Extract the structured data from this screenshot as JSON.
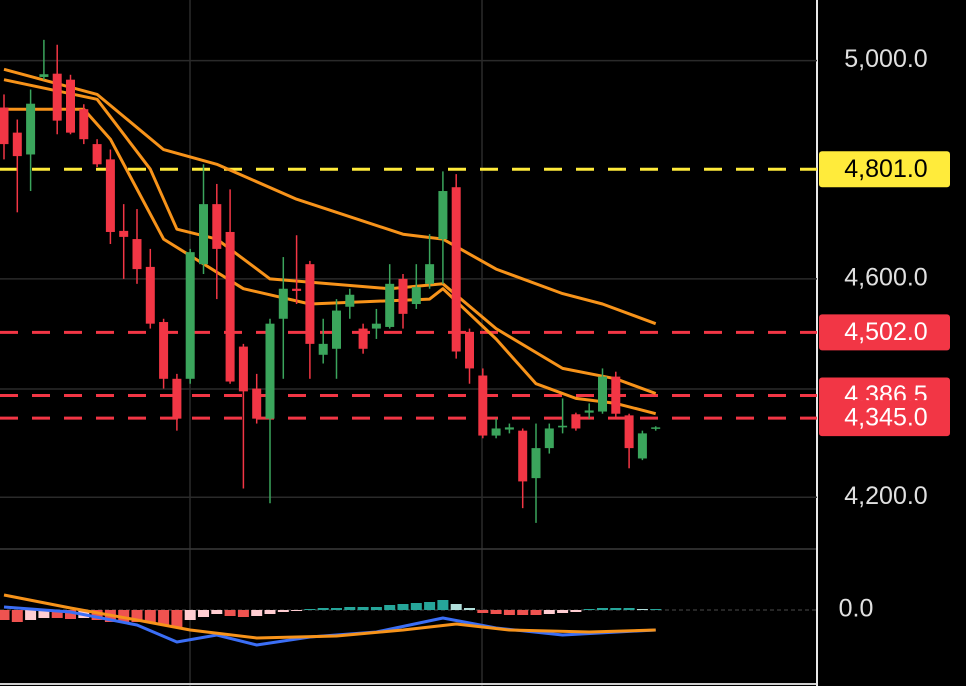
{
  "chart_data": [
    {
      "type": "candlestick",
      "ylim": [
        4107,
        5111
      ],
      "yticks": [
        {
          "value": 5000,
          "label": "5,000.0"
        },
        {
          "value": 4600,
          "label": "4,600.0"
        },
        {
          "value": 4200,
          "label": "4,200.0"
        }
      ],
      "grid": true,
      "up_color": "#3ba55c",
      "down_color": "#f23645",
      "open": [
        4914,
        4868,
        4828,
        4970,
        4976,
        4965,
        4911,
        4847,
        4819,
        4688,
        4673,
        4622,
        4521,
        4417,
        4417,
        4627,
        4737,
        4686,
        4476,
        4399,
        4344,
        4527,
        4582,
        4627,
        4461,
        4472,
        4549,
        4509,
        4509,
        4512,
        4600,
        4554,
        4591,
        4673,
        4768,
        4503,
        4423,
        4313,
        4324,
        4322,
        4235,
        4290,
        4328,
        4352,
        4355,
        4357,
        4421,
        4350,
        4271,
        4326
      ],
      "high": [
        4938,
        4892,
        4947,
        5038,
        5029,
        4974,
        4920,
        4856,
        4837,
        4737,
        4728,
        4655,
        4527,
        4426,
        4655,
        4810,
        4774,
        4764,
        4481,
        4426,
        4527,
        4640,
        4680,
        4633,
        4527,
        4563,
        4582,
        4518,
        4545,
        4627,
        4609,
        4627,
        4682,
        4797,
        4792,
        4509,
        4436,
        4344,
        4335,
        4326,
        4335,
        4335,
        4381,
        4355,
        4372,
        4436,
        4430,
        4353,
        4322,
        4330
      ],
      "low": [
        4819,
        4722,
        4761,
        4965,
        4865,
        4865,
        4847,
        4805,
        4664,
        4600,
        4591,
        4509,
        4399,
        4322,
        4408,
        4609,
        4563,
        4408,
        4216,
        4335,
        4189,
        4417,
        4554,
        4417,
        4445,
        4417,
        4527,
        4463,
        4490,
        4509,
        4509,
        4545,
        4582,
        4591,
        4454,
        4408,
        4308,
        4308,
        4317,
        4180,
        4153,
        4280,
        4317,
        4322,
        4344,
        4353,
        4344,
        4253,
        4268,
        4322
      ],
      "close": [
        4847,
        4825,
        4921,
        4975,
        4890,
        4868,
        4856,
        4810,
        4686,
        4677,
        4618,
        4518,
        4417,
        4344,
        4649,
        4737,
        4655,
        4412,
        4394,
        4344,
        4518,
        4582,
        4578,
        4481,
        4481,
        4542,
        4571,
        4472,
        4518,
        4591,
        4536,
        4585,
        4627,
        4761,
        4467,
        4436,
        4313,
        4326,
        4328,
        4229,
        4290,
        4326,
        4331,
        4326,
        4359,
        4421,
        4353,
        4290,
        4317,
        4328
      ],
      "series": [
        {
          "color": "#f7931a",
          "x": [
            0,
            7,
            12,
            16,
            22,
            30,
            33,
            37,
            42,
            45,
            49
          ],
          "values": [
            4984,
            4938,
            4837,
            4810,
            4746,
            4682,
            4673,
            4618,
            4573,
            4554,
            4518
          ]
        },
        {
          "color": "#f7931a",
          "x": [
            0,
            7,
            11,
            13,
            16,
            20,
            29,
            33,
            37,
            42,
            46,
            49
          ],
          "values": [
            4965,
            4929,
            4801,
            4691,
            4673,
            4600,
            4582,
            4591,
            4509,
            4436,
            4417,
            4390
          ]
        },
        {
          "color": "#f7931a",
          "x": [
            0,
            6,
            8,
            12,
            18,
            23,
            32,
            33,
            37,
            40,
            43,
            46,
            49
          ],
          "values": [
            4911,
            4911,
            4856,
            4673,
            4582,
            4554,
            4563,
            4582,
            4490,
            4408,
            4381,
            4372,
            4353
          ]
        }
      ],
      "levels": [
        {
          "value": 4801,
          "label": "4,801.0",
          "color": "#ffeb3b",
          "text_color": "#000000"
        },
        {
          "value": 4502,
          "label": "4,502.0",
          "color": "#f23645",
          "text_color": "#ffffff"
        },
        {
          "value": 4386.5,
          "label": "4,386.5",
          "color": "#f23645",
          "text_color": "#ffffff"
        },
        {
          "value": 4345,
          "label": "4,345.0",
          "color": "#f23645",
          "text_color": "#ffffff"
        }
      ]
    },
    {
      "type": "macd",
      "ylim": [
        -70,
        60
      ],
      "yticks": [
        {
          "value": 0,
          "label": "0.0"
        }
      ],
      "histogram": [
        -10,
        -12,
        -10,
        -8,
        -8,
        -9,
        -8,
        -10,
        -12,
        -12,
        -12,
        -13,
        -15,
        -18,
        -10,
        -7,
        -4,
        -6,
        -7,
        -6,
        -4,
        -2,
        -1,
        1,
        2,
        2,
        3,
        3,
        3,
        5,
        6,
        7,
        8,
        10,
        6,
        2,
        -3,
        -4,
        -5,
        -5,
        -5,
        -4,
        -3,
        -2,
        1,
        2,
        2,
        2,
        1,
        1
      ],
      "colors": {
        "up_strong": "#26a69a",
        "up_weak": "#b2dfdb",
        "down_strong": "#ef5350",
        "down_weak": "#ffcdd2"
      },
      "series": [
        {
          "color": "#3b6ef5",
          "x": [
            0,
            5,
            10,
            13,
            16,
            19,
            23,
            28,
            33,
            37,
            42,
            49
          ],
          "values": [
            3,
            -2,
            -15,
            -32,
            -25,
            -35,
            -27,
            -22,
            -8,
            -18,
            -25,
            -20
          ]
        },
        {
          "color": "#f7931a",
          "x": [
            0,
            5,
            10,
            14,
            19,
            25,
            30,
            34,
            38,
            44,
            49
          ],
          "values": [
            15,
            2,
            -10,
            -20,
            -28,
            -26,
            -20,
            -14,
            -20,
            -22,
            -20
          ]
        }
      ]
    }
  ]
}
